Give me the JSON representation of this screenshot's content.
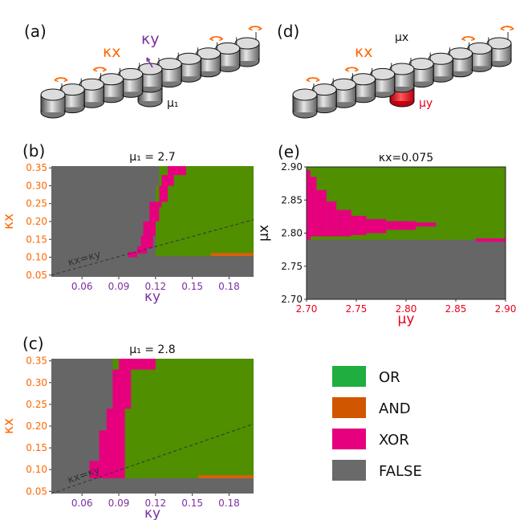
{
  "colors": {
    "OR": "#4f8f00",
    "AND": "#d95f0e",
    "XOR": "#e6007e",
    "FALSE": "#666666",
    "legend_OR": "#1fae3f",
    "legend_AND": "#d05600",
    "legend_XOR": "#e6007e",
    "legend_FALSE": "#6a6a6a",
    "kx": "#ff6600",
    "ky": "#7b2fa0",
    "mu_red": "#e8001c"
  },
  "schematic_a": {
    "panel_label": "(a)",
    "kx_label": "κx",
    "ky_label": "κy",
    "mu_label": "μ₁"
  },
  "schematic_d": {
    "panel_label": "(d)",
    "kx_label": "κx",
    "mux_label": "μx",
    "muy_label": "μy"
  },
  "legend": {
    "items": [
      {
        "label": "OR",
        "color_key": "legend_OR"
      },
      {
        "label": "AND",
        "color_key": "legend_AND"
      },
      {
        "label": "XOR",
        "color_key": "legend_XOR"
      },
      {
        "label": "FALSE",
        "color_key": "legend_FALSE"
      }
    ]
  },
  "chart_data": [
    {
      "id": "b",
      "type": "heatmap",
      "panel_label": "(b)",
      "title": "μ₁ = 2.7",
      "xlabel": "κy",
      "ylabel": "κx",
      "xlim": [
        0.035,
        0.2
      ],
      "ylim": [
        0.045,
        0.355
      ],
      "xticks": [
        "0.06",
        "0.09",
        "0.12",
        "0.15",
        "0.18"
      ],
      "xtick_values": [
        0.06,
        0.09,
        0.12,
        0.15,
        0.18
      ],
      "yticks": [
        "0.05",
        "0.10",
        "0.15",
        "0.20",
        "0.25",
        "0.30",
        "0.35"
      ],
      "ytick_values": [
        0.05,
        0.1,
        0.15,
        0.2,
        0.25,
        0.3,
        0.35
      ],
      "background": "FALSE",
      "rects": [
        {
          "x0": 0.1,
          "x1": 0.2,
          "y0": 0.1,
          "y1": 0.355,
          "cls": "OR"
        },
        {
          "x0": 0.1,
          "x1": 0.12,
          "y0": 0.1,
          "y1": 0.355,
          "cls": "FALSE"
        },
        {
          "x0": 0.115,
          "x1": 0.12,
          "y0": 0.225,
          "y1": 0.355,
          "cls": "FALSE"
        },
        {
          "x0": 0.12,
          "x1": 0.123,
          "y0": 0.3,
          "y1": 0.355,
          "cls": "FALSE"
        },
        {
          "x0": 0.165,
          "x1": 0.2,
          "y0": 0.103,
          "y1": 0.112,
          "cls": "AND"
        },
        {
          "x0": 0.107,
          "x1": 0.2,
          "y0": 0.1,
          "y1": 0.103,
          "cls": "FALSE"
        },
        {
          "x0": 0.0975,
          "x1": 0.105,
          "y0": 0.1,
          "y1": 0.115,
          "cls": "XOR"
        },
        {
          "x0": 0.105,
          "x1": 0.113,
          "y0": 0.11,
          "y1": 0.13,
          "cls": "XOR"
        },
        {
          "x0": 0.108,
          "x1": 0.118,
          "y0": 0.125,
          "y1": 0.16,
          "cls": "XOR"
        },
        {
          "x0": 0.11,
          "x1": 0.12,
          "y0": 0.16,
          "y1": 0.2,
          "cls": "XOR"
        },
        {
          "x0": 0.115,
          "x1": 0.123,
          "y0": 0.2,
          "y1": 0.24,
          "cls": "XOR"
        },
        {
          "x0": 0.115,
          "x1": 0.125,
          "y0": 0.24,
          "y1": 0.255,
          "cls": "XOR"
        },
        {
          "x0": 0.123,
          "x1": 0.13,
          "y0": 0.255,
          "y1": 0.3,
          "cls": "XOR"
        },
        {
          "x0": 0.125,
          "x1": 0.135,
          "y0": 0.3,
          "y1": 0.33,
          "cls": "XOR"
        },
        {
          "x0": 0.13,
          "x1": 0.145,
          "y0": 0.33,
          "y1": 0.355,
          "cls": "XOR"
        }
      ],
      "dashed_line": {
        "x0": 0.035,
        "y0": 0.05,
        "x1": 0.2,
        "y1": 0.205
      },
      "line_label": "κx=κy"
    },
    {
      "id": "c",
      "type": "heatmap",
      "panel_label": "(c)",
      "title": "μ₁ = 2.8",
      "xlabel": "κy",
      "ylabel": "κx",
      "xlim": [
        0.035,
        0.2
      ],
      "ylim": [
        0.045,
        0.355
      ],
      "xticks": [
        "0.06",
        "0.09",
        "0.12",
        "0.15",
        "0.18"
      ],
      "xtick_values": [
        0.06,
        0.09,
        0.12,
        0.15,
        0.18
      ],
      "yticks": [
        "0.05",
        "0.10",
        "0.15",
        "0.20",
        "0.25",
        "0.30",
        "0.35"
      ],
      "ytick_values": [
        0.05,
        0.1,
        0.15,
        0.2,
        0.25,
        0.3,
        0.35
      ],
      "background": "FALSE",
      "rects": [
        {
          "x0": 0.085,
          "x1": 0.2,
          "y0": 0.08,
          "y1": 0.355,
          "cls": "OR"
        },
        {
          "x0": 0.155,
          "x1": 0.2,
          "y0": 0.08,
          "y1": 0.087,
          "cls": "AND"
        },
        {
          "x0": 0.066,
          "x1": 0.076,
          "y0": 0.08,
          "y1": 0.12,
          "cls": "XOR"
        },
        {
          "x0": 0.074,
          "x1": 0.085,
          "y0": 0.08,
          "y1": 0.19,
          "cls": "XOR"
        },
        {
          "x0": 0.085,
          "x1": 0.095,
          "y0": 0.08,
          "y1": 0.09,
          "cls": "XOR"
        },
        {
          "x0": 0.08,
          "x1": 0.095,
          "y0": 0.09,
          "y1": 0.24,
          "cls": "XOR"
        },
        {
          "x0": 0.085,
          "x1": 0.1,
          "y0": 0.24,
          "y1": 0.33,
          "cls": "XOR"
        },
        {
          "x0": 0.09,
          "x1": 0.12,
          "y0": 0.33,
          "y1": 0.355,
          "cls": "XOR"
        },
        {
          "x0": 0.095,
          "x1": 0.2,
          "y0": 0.08,
          "y1": 0.087,
          "cls": "OR"
        },
        {
          "x0": 0.155,
          "x1": 0.2,
          "y0": 0.08,
          "y1": 0.087,
          "cls": "AND"
        }
      ],
      "dashed_line": {
        "x0": 0.035,
        "y0": 0.045,
        "x1": 0.2,
        "y1": 0.205
      },
      "line_label": "κx=κy"
    },
    {
      "id": "e",
      "type": "heatmap",
      "panel_label": "(e)",
      "title": "κx=0.075",
      "xlabel": "μy",
      "ylabel": "μx",
      "xlim": [
        2.7,
        2.9
      ],
      "ylim": [
        2.7,
        2.9
      ],
      "xticks": [
        "2.70",
        "2.75",
        "2.80",
        "2.85",
        "2.90"
      ],
      "xtick_values": [
        2.7,
        2.75,
        2.8,
        2.85,
        2.9
      ],
      "yticks": [
        "2.70",
        "2.75",
        "2.80",
        "2.85",
        "2.90"
      ],
      "ytick_values": [
        2.7,
        2.75,
        2.8,
        2.85,
        2.9
      ],
      "background": "FALSE",
      "rects": [
        {
          "x0": 2.7,
          "x1": 2.9,
          "y0": 2.79,
          "y1": 2.9,
          "cls": "OR"
        },
        {
          "x0": 2.7,
          "x1": 2.704,
          "y0": 2.79,
          "y1": 2.895,
          "cls": "XOR"
        },
        {
          "x0": 2.704,
          "x1": 2.71,
          "y0": 2.795,
          "y1": 2.885,
          "cls": "XOR"
        },
        {
          "x0": 2.71,
          "x1": 2.72,
          "y0": 2.795,
          "y1": 2.865,
          "cls": "XOR"
        },
        {
          "x0": 2.72,
          "x1": 2.73,
          "y0": 2.795,
          "y1": 2.848,
          "cls": "XOR"
        },
        {
          "x0": 2.73,
          "x1": 2.745,
          "y0": 2.795,
          "y1": 2.835,
          "cls": "XOR"
        },
        {
          "x0": 2.745,
          "x1": 2.76,
          "y0": 2.797,
          "y1": 2.826,
          "cls": "XOR"
        },
        {
          "x0": 2.76,
          "x1": 2.78,
          "y0": 2.8,
          "y1": 2.821,
          "cls": "XOR"
        },
        {
          "x0": 2.78,
          "x1": 2.81,
          "y0": 2.805,
          "y1": 2.818,
          "cls": "XOR"
        },
        {
          "x0": 2.81,
          "x1": 2.83,
          "y0": 2.81,
          "y1": 2.816,
          "cls": "XOR"
        },
        {
          "x0": 2.87,
          "x1": 2.9,
          "y0": 2.787,
          "y1": 2.792,
          "cls": "XOR"
        }
      ]
    }
  ]
}
